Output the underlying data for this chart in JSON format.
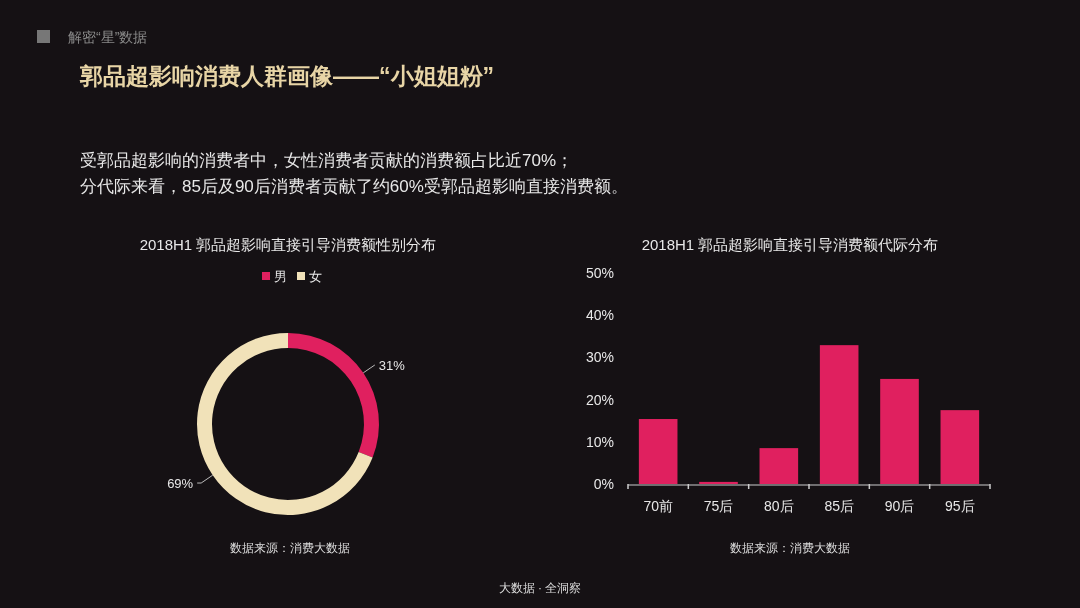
{
  "chart_data": [
    {
      "type": "donut",
      "title": "2018H1  郭品超影响直接引导消费额性别分布",
      "categories": [
        "男",
        "女"
      ],
      "values": [
        31,
        69
      ],
      "colors": [
        "#e0205f",
        "#f1e2b9"
      ],
      "value_labels": [
        "31%",
        "69%"
      ],
      "legend": "top",
      "annotations": [
        "解密“星”数据",
        "郭品超影响消费人群画像——“小姐姐粉”",
        "受郭品超影响的消费者中，女性消费者贡献的消费额占比近70%；",
        "分代际来看，85后及90后消费者贡献了约60%受郭品超影响直接消费额。",
        "数据来源：消费大数据",
        "大数据 · 全洞察"
      ]
    },
    {
      "type": "bar",
      "title": "2018H1  郭品超影响直接引导消费额代际分布",
      "categories": [
        "70前",
        "75后",
        "80后",
        "85后",
        "90后",
        "95后"
      ],
      "values": [
        15.4,
        0.5,
        8.5,
        32.9,
        24.9,
        17.5
      ],
      "color": "#e0205f",
      "ylim": [
        0,
        50
      ],
      "yticks": [
        {
          "value": 0,
          "label": "0%"
        },
        {
          "value": 10,
          "label": "10%"
        },
        {
          "value": 20,
          "label": "20%"
        },
        {
          "value": 30,
          "label": "30%"
        },
        {
          "value": 40,
          "label": "40%"
        },
        {
          "value": 50,
          "label": "50%"
        }
      ],
      "grid": false,
      "annotations": [
        "数据来源：消费大数据"
      ]
    }
  ]
}
